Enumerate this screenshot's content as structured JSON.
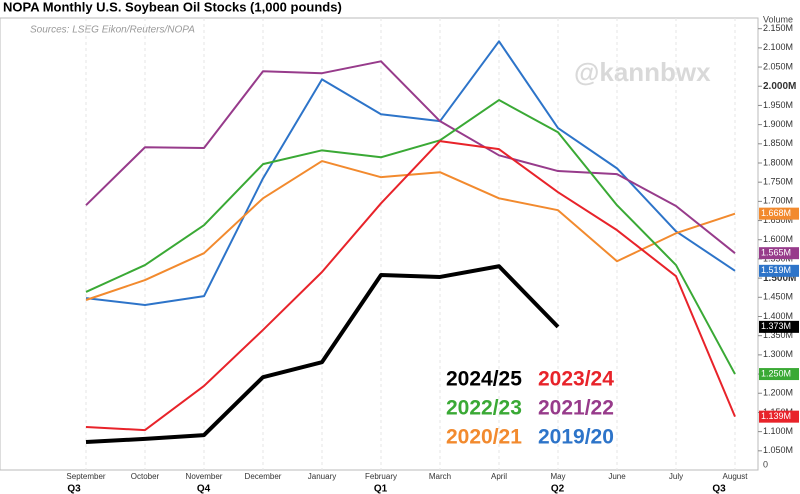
{
  "chart_data": {
    "type": "line",
    "title": "NOPA Monthly U.S. Soybean Oil Stocks (1,000 pounds)",
    "subtitle": "Sources: LSEG Eikon/Reuters/NOPA",
    "watermark": "@kannbwx",
    "y_axis_label": "Volume",
    "y_axis_floor_label": "0",
    "categories": [
      "September",
      "October",
      "November",
      "December",
      "January",
      "February",
      "March",
      "April",
      "May",
      "June",
      "July",
      "August"
    ],
    "quarters": [
      "Q3",
      "Q4",
      "Q1",
      "Q2",
      "Q3"
    ],
    "ylim": [
      1.0,
      2.17
    ],
    "yticks": [
      {
        "value": 1.05,
        "label": "1.050M"
      },
      {
        "value": 1.1,
        "label": "1.100M"
      },
      {
        "value": 1.15,
        "label": "1.150M"
      },
      {
        "value": 1.2,
        "label": "1.200M"
      },
      {
        "value": 1.25,
        "label": "1.250M"
      },
      {
        "value": 1.3,
        "label": "1.300M"
      },
      {
        "value": 1.35,
        "label": "1.350M"
      },
      {
        "value": 1.4,
        "label": "1.400M"
      },
      {
        "value": 1.45,
        "label": "1.450M"
      },
      {
        "value": 1.5,
        "label": "1.500M"
      },
      {
        "value": 1.55,
        "label": "1.550M"
      },
      {
        "value": 1.6,
        "label": "1.600M"
      },
      {
        "value": 1.65,
        "label": "1.650M"
      },
      {
        "value": 1.7,
        "label": "1.700M"
      },
      {
        "value": 1.75,
        "label": "1.750M"
      },
      {
        "value": 1.8,
        "label": "1.800M"
      },
      {
        "value": 1.85,
        "label": "1.850M"
      },
      {
        "value": 1.9,
        "label": "1.900M"
      },
      {
        "value": 1.95,
        "label": "1.950M"
      },
      {
        "value": 2.0,
        "label": "2.000M"
      },
      {
        "value": 2.05,
        "label": "2.050M"
      },
      {
        "value": 2.1,
        "label": "2.100M"
      },
      {
        "value": 2.15,
        "label": "2.150M"
      }
    ],
    "grid": true,
    "series": [
      {
        "name": "2024/25",
        "color": "#000000",
        "width": 4,
        "values": [
          1.073,
          1.081,
          1.091,
          1.242,
          1.281,
          1.508,
          1.503,
          1.531,
          1.373,
          null,
          null,
          null
        ],
        "value_labels": [
          null,
          null,
          null,
          null,
          null,
          null,
          null,
          null,
          "1.373M",
          null,
          null,
          null
        ]
      },
      {
        "name": "2023/24",
        "color": "#e8232a",
        "width": 2,
        "values": [
          1.112,
          1.104,
          1.219,
          1.365,
          1.516,
          1.695,
          1.857,
          1.836,
          1.724,
          1.625,
          1.505,
          1.139
        ],
        "value_labels": [
          null,
          null,
          null,
          null,
          null,
          null,
          null,
          null,
          null,
          null,
          null,
          "1.139M"
        ]
      },
      {
        "name": "2022/23",
        "color": "#3aa935",
        "width": 2,
        "values": [
          1.464,
          1.534,
          1.638,
          1.797,
          1.833,
          1.815,
          1.859,
          1.964,
          1.88,
          1.69,
          1.534,
          1.25
        ],
        "value_labels": [
          null,
          null,
          null,
          null,
          null,
          null,
          null,
          null,
          null,
          null,
          null,
          "1.250M"
        ]
      },
      {
        "name": "2021/22",
        "color": "#973b8b",
        "width": 2,
        "values": [
          1.69,
          1.841,
          1.839,
          2.039,
          2.034,
          2.065,
          1.909,
          1.82,
          1.779,
          1.771,
          1.688,
          1.565
        ],
        "value_labels": [
          null,
          null,
          null,
          null,
          null,
          null,
          null,
          null,
          null,
          null,
          null,
          "1.565M"
        ]
      },
      {
        "name": "2020/21",
        "color": "#f28a2e",
        "width": 2,
        "values": [
          1.443,
          1.495,
          1.565,
          1.708,
          1.805,
          1.763,
          1.776,
          1.708,
          1.677,
          1.544,
          1.617,
          1.668
        ],
        "value_labels": [
          null,
          null,
          null,
          null,
          null,
          null,
          null,
          null,
          null,
          null,
          null,
          "1.668M"
        ]
      },
      {
        "name": "2019/20",
        "color": "#2d74c9",
        "width": 2,
        "values": [
          1.448,
          1.43,
          1.453,
          1.76,
          2.018,
          1.927,
          1.909,
          2.117,
          1.891,
          1.786,
          1.622,
          1.519
        ],
        "value_labels": [
          null,
          null,
          null,
          null,
          null,
          null,
          null,
          null,
          null,
          null,
          null,
          "1.519M"
        ]
      }
    ]
  }
}
